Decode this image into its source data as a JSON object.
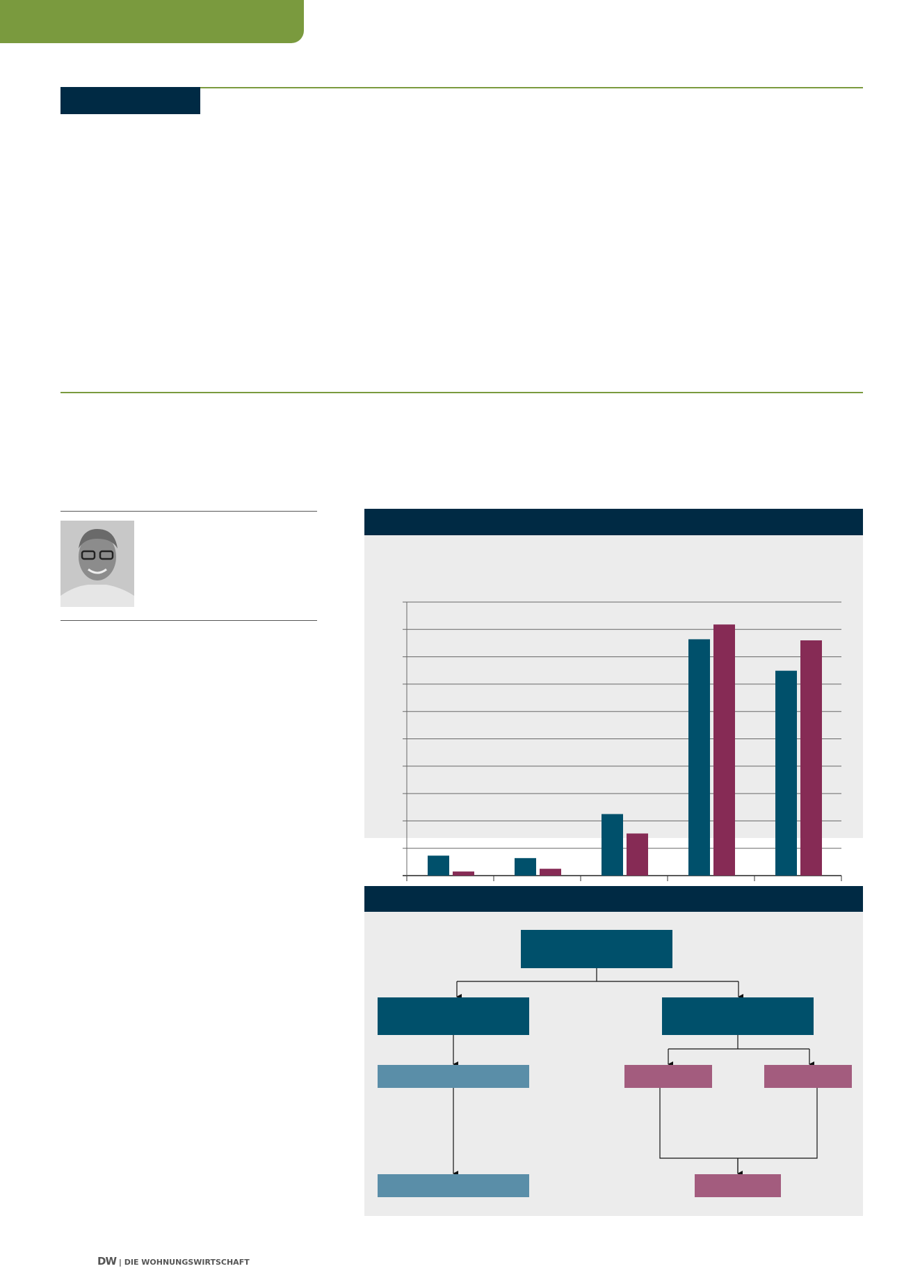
{
  "colors": {
    "green": "#7a9a3e",
    "navy": "#002a44",
    "teal": "#00506b",
    "maroon": "#862b55",
    "light_blue": "#5a8ea8",
    "pink": "#a35c7e"
  },
  "footer": {
    "logo": "DW",
    "separator": "|",
    "publication": "DIE WOHNUNGSWIRTSCHAFT"
  },
  "chart_data": {
    "type": "bar",
    "categories": [
      "",
      "",
      "",
      "",
      ""
    ],
    "series": [
      {
        "color": "#00506b",
        "values": [
          0.73,
          0.64,
          2.25,
          8.64,
          7.49
        ]
      },
      {
        "color": "#862b55",
        "values": [
          0.15,
          0.25,
          1.54,
          9.18,
          8.6
        ]
      }
    ],
    "ylim": [
      0,
      10
    ],
    "grid": true,
    "legend": "bottom-left"
  },
  "diagram": {
    "nodes": [
      "root",
      "left",
      "right",
      "left-child",
      "right-child-1",
      "right-child-2",
      "left-result",
      "right-result"
    ]
  }
}
